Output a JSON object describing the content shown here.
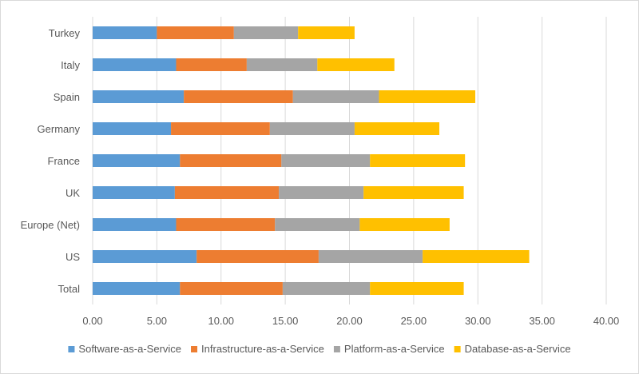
{
  "chart_data": {
    "type": "bar",
    "orientation": "horizontal",
    "stacked": true,
    "categories": [
      "Turkey",
      "Italy",
      "Spain",
      "Germany",
      "France",
      "UK",
      "Europe (Net)",
      "US",
      "Total"
    ],
    "series": [
      {
        "name": "Software-as-a-Service",
        "color": "#5b9bd5",
        "values": [
          5.0,
          6.5,
          7.1,
          6.1,
          6.8,
          6.4,
          6.5,
          8.1,
          6.8
        ]
      },
      {
        "name": "Infrastructure-as-a-Service",
        "color": "#ed7d31",
        "values": [
          6.0,
          5.5,
          8.5,
          7.7,
          7.9,
          8.1,
          7.7,
          9.5,
          8.0
        ]
      },
      {
        "name": "Platform-as-a-Service",
        "color": "#a5a5a5",
        "values": [
          5.0,
          5.5,
          6.7,
          6.6,
          6.9,
          6.6,
          6.6,
          8.1,
          6.8
        ]
      },
      {
        "name": "Database-as-a-Service",
        "color": "#ffc000",
        "values": [
          4.4,
          6.0,
          7.5,
          6.6,
          7.4,
          7.8,
          7.0,
          8.3,
          7.3
        ]
      }
    ],
    "xlim": [
      0,
      40
    ],
    "xticks": [
      "0.00",
      "5.00",
      "10.00",
      "15.00",
      "20.00",
      "25.00",
      "30.00",
      "35.00",
      "40.00"
    ],
    "grid": true,
    "legend_position": "bottom",
    "title": "",
    "xlabel": "",
    "ylabel": ""
  }
}
